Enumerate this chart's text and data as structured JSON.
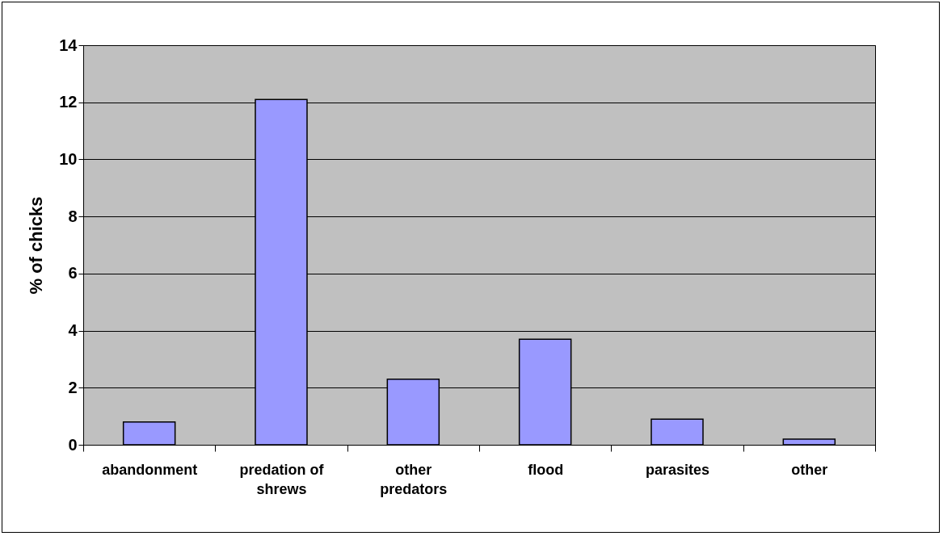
{
  "chart_data": {
    "type": "bar",
    "ylabel": "% of chicks",
    "categories": [
      "abandonment",
      "predation of shrews",
      "other predators",
      "flood",
      "parasites",
      "other"
    ],
    "values": [
      0.8,
      12.1,
      2.3,
      3.7,
      0.9,
      0.2
    ],
    "color": "#9999ff",
    "ylim": [
      0,
      14
    ],
    "yticks": [
      0,
      2,
      4,
      6,
      8,
      10,
      12,
      14
    ],
    "grid": "y"
  }
}
